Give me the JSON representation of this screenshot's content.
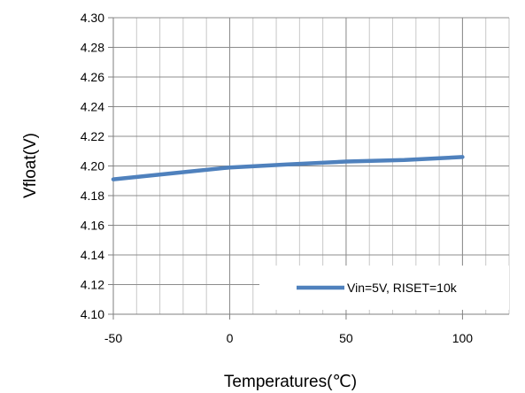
{
  "chart_data": {
    "type": "line",
    "title": "",
    "xlabel": "Temperatures(℃)",
    "ylabel": "Vfloat(V)",
    "xlim": [
      -50,
      120
    ],
    "ylim": [
      4.1,
      4.3
    ],
    "x_major_ticks": [
      -50,
      0,
      50,
      100
    ],
    "x_tick_labels": [
      "-50",
      "0",
      "50",
      "100"
    ],
    "x_minor_step": 10,
    "y_ticks": [
      4.1,
      4.12,
      4.14,
      4.16,
      4.18,
      4.2,
      4.22,
      4.24,
      4.26,
      4.28,
      4.3
    ],
    "y_tick_labels": [
      "4.10",
      "4.12",
      "4.14",
      "4.16",
      "4.18",
      "4.20",
      "4.22",
      "4.24",
      "4.26",
      "4.28",
      "4.30"
    ],
    "grid": true,
    "legend_position": "bottom-right",
    "line_color": "#4F81BD",
    "series": [
      {
        "name": "Vin=5V, RISET=10k",
        "x": [
          -50,
          -25,
          0,
          25,
          50,
          75,
          100
        ],
        "y": [
          4.191,
          4.195,
          4.199,
          4.201,
          4.203,
          4.204,
          4.206
        ]
      }
    ]
  }
}
